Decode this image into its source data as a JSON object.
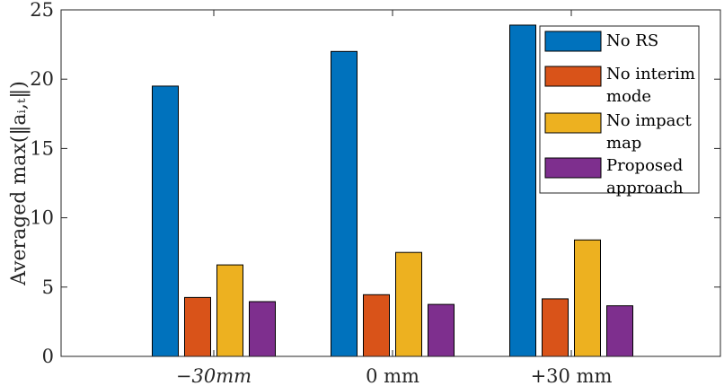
{
  "chart_data": {
    "type": "bar",
    "title": "",
    "xlabel": "",
    "ylabel": "Averaged max(‖aᵢ,ₜ‖)",
    "ylim": [
      0,
      25
    ],
    "yticks": [
      0,
      5,
      10,
      15,
      20,
      25
    ],
    "categories": [
      "−30mm",
      "0 mm",
      "+30 mm"
    ],
    "series": [
      {
        "name": "No RS",
        "values": [
          19.5,
          22.0,
          23.9
        ],
        "color": "#0072BD"
      },
      {
        "name": "No interim mode",
        "values": [
          4.25,
          4.45,
          4.15
        ],
        "color": "#D95319"
      },
      {
        "name": "No impact map",
        "values": [
          6.6,
          7.5,
          8.4
        ],
        "color": "#EDB120"
      },
      {
        "name": "Proposed approach",
        "values": [
          3.95,
          3.75,
          3.65
        ],
        "color": "#7E2F8E"
      }
    ],
    "legend": {
      "placement": "top-right",
      "entries": [
        {
          "lines": [
            "No RS"
          ]
        },
        {
          "lines": [
            "No interim",
            "mode"
          ]
        },
        {
          "lines": [
            "No impact",
            "map"
          ]
        },
        {
          "lines": [
            "Proposed",
            "approach"
          ]
        }
      ]
    },
    "grid": false
  }
}
